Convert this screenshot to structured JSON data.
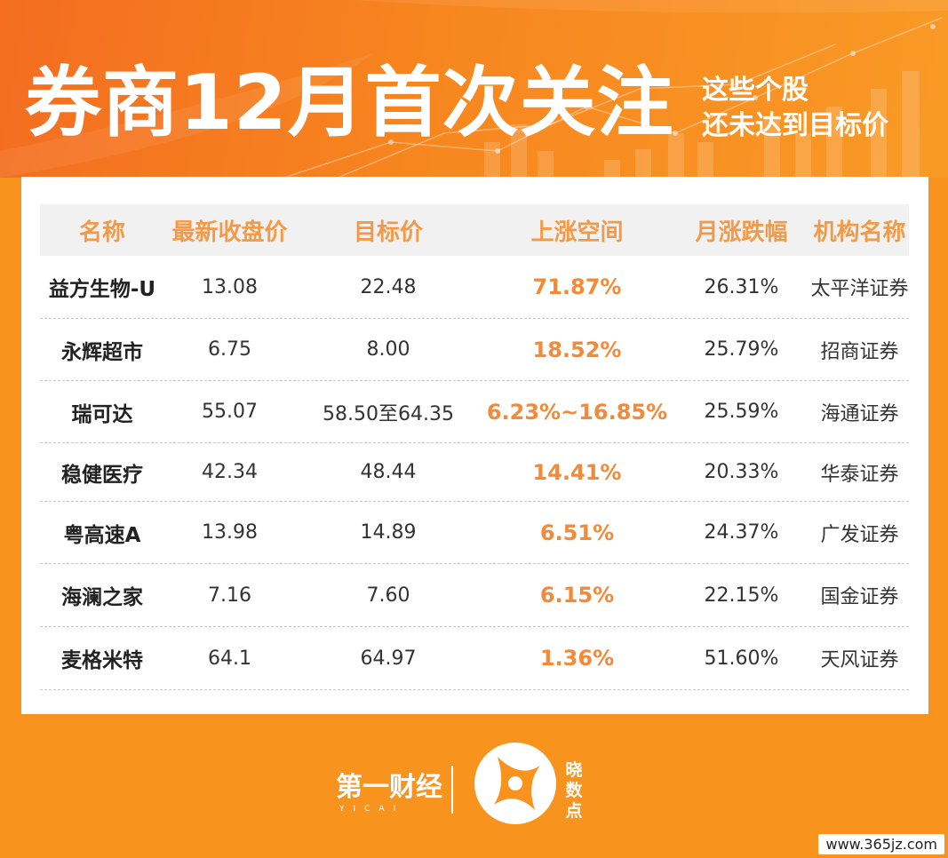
{
  "header": {
    "title": "券商12月首次关注",
    "subtitle_line1": "这些个股",
    "subtitle_line2": "还未达到目标价"
  },
  "table": {
    "columns": [
      "名称",
      "最新收盘价",
      "目标价",
      "上涨空间",
      "月涨跌幅",
      "机构名称"
    ],
    "rows": [
      {
        "name": "益方生物-U",
        "close": "13.08",
        "target": "22.48",
        "upside": "71.87%",
        "monthly": "26.31%",
        "institution": "太平洋证券"
      },
      {
        "name": "永辉超市",
        "close": "6.75",
        "target": "8.00",
        "upside": "18.52%",
        "monthly": "25.79%",
        "institution": "招商证券"
      },
      {
        "name": "瑞可达",
        "close": "55.07",
        "target": "58.50至64.35",
        "upside": "6.23%~16.85%",
        "monthly": "25.59%",
        "institution": "海通证券"
      },
      {
        "name": "稳健医疗",
        "close": "42.34",
        "target": "48.44",
        "upside": "14.41%",
        "monthly": "20.33%",
        "institution": "华泰证券"
      },
      {
        "name": "粤高速A",
        "close": "13.98",
        "target": "14.89",
        "upside": "6.51%",
        "monthly": "24.37%",
        "institution": "广发证券"
      },
      {
        "name": "海澜之家",
        "close": "7.16",
        "target": "7.60",
        "upside": "6.15%",
        "monthly": "22.15%",
        "institution": "国金证券"
      },
      {
        "name": "麦格米特",
        "close": "64.1",
        "target": "64.97",
        "upside": "1.36%",
        "monthly": "51.60%",
        "institution": "天风证券"
      }
    ]
  },
  "footer": {
    "logo_yicai": "第一财经",
    "logo_yicai_sub": "YICAI",
    "logo_xiao": "晓数点",
    "watermark": "www.365jz.com"
  },
  "colors": {
    "background": "#f8931e",
    "header_accent": "#f46d21",
    "highlight_text": "#f28a3a",
    "header_cell_text": "#f39a48"
  }
}
